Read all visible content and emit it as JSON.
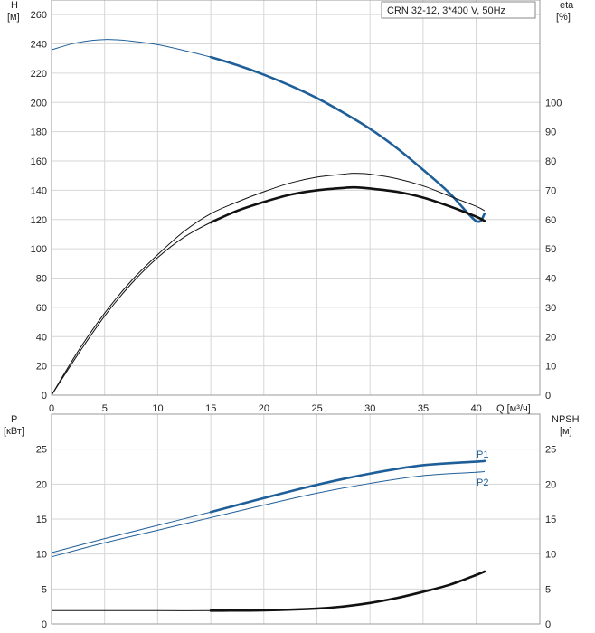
{
  "chart_data": [
    {
      "type": "line",
      "title": "CRN 32-12, 3*400 V, 50Hz",
      "ylabel_left": "H",
      "ylabel_left_unit": "[м]",
      "ylabel_right": "eta",
      "ylabel_right_unit": "[%]",
      "xlabel": "Q [м³/ч]",
      "xlim": [
        0,
        46
      ],
      "ylim_left": [
        0,
        270
      ],
      "ylim_right": [
        0,
        135
      ],
      "x_ticks": [
        "0",
        "5",
        "10",
        "15",
        "20",
        "25",
        "30",
        "35",
        "40"
      ],
      "y_ticks_left": [
        "0",
        "20",
        "40",
        "60",
        "80",
        "100",
        "120",
        "140",
        "160",
        "180",
        "200",
        "220",
        "240",
        "260"
      ],
      "y_ticks_right": [
        "0",
        "10",
        "20",
        "30",
        "40",
        "50",
        "60",
        "70",
        "80",
        "90",
        "100"
      ],
      "grid": true,
      "series": [
        {
          "axis": "left",
          "color": "#1f5f99",
          "x": [
            0,
            2.5,
            5,
            7.5,
            10,
            12.5,
            15,
            17.5,
            20,
            22.5,
            25,
            27.5,
            30,
            32.5,
            35,
            37.5,
            40,
            40.8
          ],
          "values": [
            236,
            241,
            243,
            242,
            239.5,
            235.5,
            231,
            225.5,
            219,
            211.5,
            203,
            193,
            182,
            169,
            154,
            138,
            119,
            124
          ],
          "operating_range": [
            15,
            40.8
          ]
        },
        {
          "axis": "right",
          "color": "#111111",
          "x": [
            0,
            2.5,
            5,
            7.5,
            10,
            12.5,
            15,
            17.5,
            20,
            22.5,
            25,
            27.5,
            28.5,
            30,
            32.5,
            35,
            37.5,
            40,
            40.8
          ],
          "values": [
            0,
            15,
            28,
            39,
            48,
            56,
            62,
            66,
            69.5,
            72.5,
            74.5,
            75.5,
            75.8,
            75.5,
            74,
            71.5,
            68,
            64.5,
            63
          ],
          "operating_range": null
        },
        {
          "axis": "right",
          "color": "#111111",
          "x": [
            0,
            2.5,
            5,
            7.5,
            10,
            12.5,
            15,
            17.5,
            20,
            22.5,
            25,
            27.5,
            28.5,
            30,
            32.5,
            35,
            37.5,
            40,
            40.8
          ],
          "values": [
            0,
            14,
            27,
            38,
            47,
            54,
            59,
            63,
            66,
            68.5,
            70,
            70.8,
            71,
            70.6,
            69.5,
            67.5,
            64.5,
            61,
            59.5
          ],
          "operating_range": [
            15,
            40.8
          ]
        }
      ]
    },
    {
      "type": "line",
      "ylabel_left": "P",
      "ylabel_left_unit": "[кВт]",
      "ylabel_right": "NPSH",
      "ylabel_right_unit": "[м]",
      "xlim": [
        0,
        46
      ],
      "ylim_left": [
        0,
        30
      ],
      "ylim_right": [
        0,
        30
      ],
      "y_ticks_left": [
        "0",
        "5",
        "10",
        "15",
        "20",
        "25"
      ],
      "y_ticks_right": [
        "0",
        "5",
        "10",
        "15",
        "20",
        "25"
      ],
      "grid": true,
      "series": [
        {
          "name": "P1",
          "axis": "left",
          "color": "#1f5f99",
          "x": [
            0,
            5,
            10,
            15,
            20,
            25,
            30,
            35,
            40,
            40.8
          ],
          "values": [
            10.2,
            12.2,
            14.1,
            16.0,
            18.0,
            19.9,
            21.5,
            22.7,
            23.2,
            23.3
          ],
          "operating_range": [
            15,
            40.8
          ]
        },
        {
          "name": "P2",
          "axis": "left",
          "color": "#1f5f99",
          "x": [
            0,
            5,
            10,
            15,
            20,
            25,
            30,
            35,
            40,
            40.8
          ],
          "values": [
            9.6,
            11.6,
            13.4,
            15.2,
            17.0,
            18.7,
            20.1,
            21.2,
            21.7,
            21.8
          ],
          "operating_range": null
        },
        {
          "axis": "right",
          "color": "#111111",
          "x": [
            0,
            5,
            10,
            15,
            20,
            25,
            27.5,
            30,
            32.5,
            35,
            37.5,
            40,
            40.8
          ],
          "values": [
            1.9,
            1.9,
            1.9,
            1.9,
            1.95,
            2.2,
            2.5,
            3.0,
            3.7,
            4.6,
            5.6,
            7.0,
            7.5
          ],
          "operating_range": [
            15,
            40.8
          ]
        }
      ]
    }
  ]
}
